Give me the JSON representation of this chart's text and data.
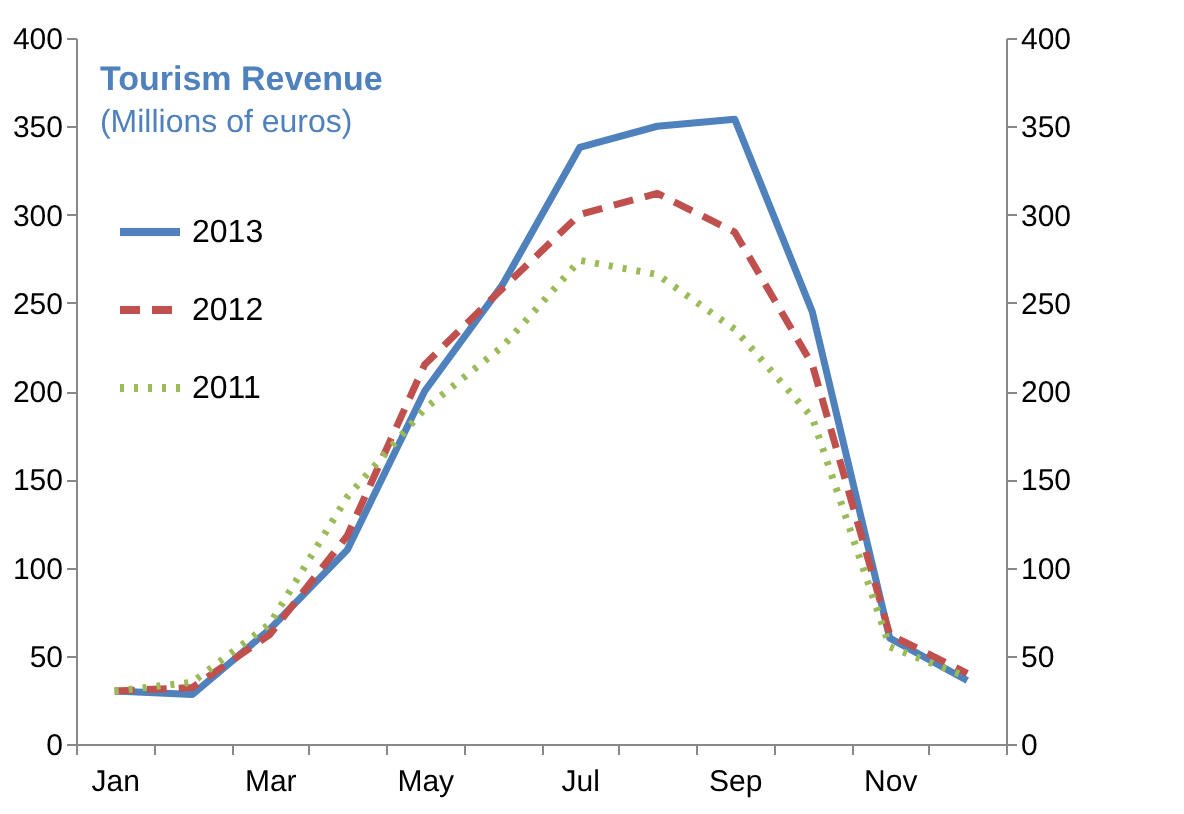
{
  "chart_data": {
    "type": "line",
    "title": "Tourism Revenue",
    "subtitle": "(Millions of euros)",
    "categories": [
      "Jan",
      null,
      "Mar",
      null,
      "May",
      null,
      "Jul",
      null,
      "Sep",
      null,
      "Nov",
      null
    ],
    "series": [
      {
        "name": "2013",
        "color": "#4f81bd",
        "line_style": "solid",
        "values": [
          30,
          28,
          65,
          110,
          200,
          260,
          338,
          350,
          354,
          245,
          60,
          36
        ]
      },
      {
        "name": "2012",
        "color": "#c0504d",
        "line_style": "dashed",
        "values": [
          30,
          32,
          62,
          118,
          215,
          258,
          300,
          312,
          290,
          215,
          62,
          40
        ]
      },
      {
        "name": "2011",
        "color": "#9bbb59",
        "line_style": "dotted",
        "values": [
          30,
          35,
          68,
          140,
          190,
          225,
          274,
          266,
          235,
          185,
          55,
          38
        ]
      }
    ],
    "ylim": [
      0,
      400
    ],
    "yticks": [
      0,
      50,
      100,
      150,
      200,
      250,
      300,
      350,
      400
    ],
    "y2lim": [
      0,
      400
    ],
    "y2ticks": [
      0,
      50,
      100,
      150,
      200,
      250,
      300,
      350,
      400
    ],
    "legend": "top left",
    "grid": false
  }
}
